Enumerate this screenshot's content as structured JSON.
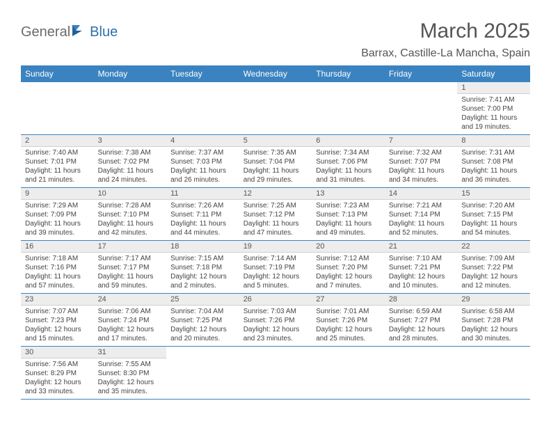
{
  "logo": {
    "word1": "General",
    "word2": "Blue"
  },
  "title": "March 2025",
  "location": "Barrax, Castille-La Mancha, Spain",
  "colors": {
    "header_bg": "#3b83c0",
    "header_text": "#ffffff",
    "daynum_bg": "#ededed",
    "border": "#3b83c0",
    "logo_gray": "#6b6b6b",
    "logo_blue": "#2f6fa8"
  },
  "weekdays": [
    "Sunday",
    "Monday",
    "Tuesday",
    "Wednesday",
    "Thursday",
    "Friday",
    "Saturday"
  ],
  "weeks": [
    [
      null,
      null,
      null,
      null,
      null,
      null,
      {
        "n": "1",
        "lines": [
          "Sunrise: 7:41 AM",
          "Sunset: 7:00 PM",
          "Daylight: 11 hours and 19 minutes."
        ]
      }
    ],
    [
      {
        "n": "2",
        "lines": [
          "Sunrise: 7:40 AM",
          "Sunset: 7:01 PM",
          "Daylight: 11 hours and 21 minutes."
        ]
      },
      {
        "n": "3",
        "lines": [
          "Sunrise: 7:38 AM",
          "Sunset: 7:02 PM",
          "Daylight: 11 hours and 24 minutes."
        ]
      },
      {
        "n": "4",
        "lines": [
          "Sunrise: 7:37 AM",
          "Sunset: 7:03 PM",
          "Daylight: 11 hours and 26 minutes."
        ]
      },
      {
        "n": "5",
        "lines": [
          "Sunrise: 7:35 AM",
          "Sunset: 7:04 PM",
          "Daylight: 11 hours and 29 minutes."
        ]
      },
      {
        "n": "6",
        "lines": [
          "Sunrise: 7:34 AM",
          "Sunset: 7:06 PM",
          "Daylight: 11 hours and 31 minutes."
        ]
      },
      {
        "n": "7",
        "lines": [
          "Sunrise: 7:32 AM",
          "Sunset: 7:07 PM",
          "Daylight: 11 hours and 34 minutes."
        ]
      },
      {
        "n": "8",
        "lines": [
          "Sunrise: 7:31 AM",
          "Sunset: 7:08 PM",
          "Daylight: 11 hours and 36 minutes."
        ]
      }
    ],
    [
      {
        "n": "9",
        "lines": [
          "Sunrise: 7:29 AM",
          "Sunset: 7:09 PM",
          "Daylight: 11 hours and 39 minutes."
        ]
      },
      {
        "n": "10",
        "lines": [
          "Sunrise: 7:28 AM",
          "Sunset: 7:10 PM",
          "Daylight: 11 hours and 42 minutes."
        ]
      },
      {
        "n": "11",
        "lines": [
          "Sunrise: 7:26 AM",
          "Sunset: 7:11 PM",
          "Daylight: 11 hours and 44 minutes."
        ]
      },
      {
        "n": "12",
        "lines": [
          "Sunrise: 7:25 AM",
          "Sunset: 7:12 PM",
          "Daylight: 11 hours and 47 minutes."
        ]
      },
      {
        "n": "13",
        "lines": [
          "Sunrise: 7:23 AM",
          "Sunset: 7:13 PM",
          "Daylight: 11 hours and 49 minutes."
        ]
      },
      {
        "n": "14",
        "lines": [
          "Sunrise: 7:21 AM",
          "Sunset: 7:14 PM",
          "Daylight: 11 hours and 52 minutes."
        ]
      },
      {
        "n": "15",
        "lines": [
          "Sunrise: 7:20 AM",
          "Sunset: 7:15 PM",
          "Daylight: 11 hours and 54 minutes."
        ]
      }
    ],
    [
      {
        "n": "16",
        "lines": [
          "Sunrise: 7:18 AM",
          "Sunset: 7:16 PM",
          "Daylight: 11 hours and 57 minutes."
        ]
      },
      {
        "n": "17",
        "lines": [
          "Sunrise: 7:17 AM",
          "Sunset: 7:17 PM",
          "Daylight: 11 hours and 59 minutes."
        ]
      },
      {
        "n": "18",
        "lines": [
          "Sunrise: 7:15 AM",
          "Sunset: 7:18 PM",
          "Daylight: 12 hours and 2 minutes."
        ]
      },
      {
        "n": "19",
        "lines": [
          "Sunrise: 7:14 AM",
          "Sunset: 7:19 PM",
          "Daylight: 12 hours and 5 minutes."
        ]
      },
      {
        "n": "20",
        "lines": [
          "Sunrise: 7:12 AM",
          "Sunset: 7:20 PM",
          "Daylight: 12 hours and 7 minutes."
        ]
      },
      {
        "n": "21",
        "lines": [
          "Sunrise: 7:10 AM",
          "Sunset: 7:21 PM",
          "Daylight: 12 hours and 10 minutes."
        ]
      },
      {
        "n": "22",
        "lines": [
          "Sunrise: 7:09 AM",
          "Sunset: 7:22 PM",
          "Daylight: 12 hours and 12 minutes."
        ]
      }
    ],
    [
      {
        "n": "23",
        "lines": [
          "Sunrise: 7:07 AM",
          "Sunset: 7:23 PM",
          "Daylight: 12 hours and 15 minutes."
        ]
      },
      {
        "n": "24",
        "lines": [
          "Sunrise: 7:06 AM",
          "Sunset: 7:24 PM",
          "Daylight: 12 hours and 17 minutes."
        ]
      },
      {
        "n": "25",
        "lines": [
          "Sunrise: 7:04 AM",
          "Sunset: 7:25 PM",
          "Daylight: 12 hours and 20 minutes."
        ]
      },
      {
        "n": "26",
        "lines": [
          "Sunrise: 7:03 AM",
          "Sunset: 7:26 PM",
          "Daylight: 12 hours and 23 minutes."
        ]
      },
      {
        "n": "27",
        "lines": [
          "Sunrise: 7:01 AM",
          "Sunset: 7:26 PM",
          "Daylight: 12 hours and 25 minutes."
        ]
      },
      {
        "n": "28",
        "lines": [
          "Sunrise: 6:59 AM",
          "Sunset: 7:27 PM",
          "Daylight: 12 hours and 28 minutes."
        ]
      },
      {
        "n": "29",
        "lines": [
          "Sunrise: 6:58 AM",
          "Sunset: 7:28 PM",
          "Daylight: 12 hours and 30 minutes."
        ]
      }
    ],
    [
      {
        "n": "30",
        "lines": [
          "Sunrise: 7:56 AM",
          "Sunset: 8:29 PM",
          "Daylight: 12 hours and 33 minutes."
        ]
      },
      {
        "n": "31",
        "lines": [
          "Sunrise: 7:55 AM",
          "Sunset: 8:30 PM",
          "Daylight: 12 hours and 35 minutes."
        ]
      },
      null,
      null,
      null,
      null,
      null
    ]
  ]
}
